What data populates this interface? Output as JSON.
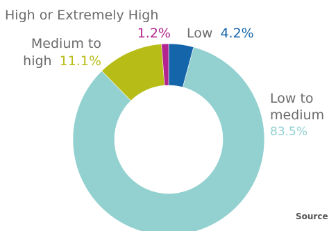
{
  "chart_data": {
    "type": "pie",
    "donut": true,
    "categories": [
      "Low",
      "Low to medium",
      "Medium to high",
      "High or Extremely High"
    ],
    "values": [
      4.2,
      83.5,
      11.1,
      1.2
    ],
    "value_labels": [
      "4.2%",
      "83.5%",
      "11.1%",
      "1.2%"
    ],
    "colors": [
      "#1565ab",
      "#93d0d0",
      "#b7bc16",
      "#b2258f"
    ],
    "label_lines": {
      "low": [
        "Low"
      ],
      "low_to_medium": [
        "Low to",
        "medium"
      ],
      "medium_to_high": [
        "Medium to",
        "high"
      ],
      "high_or_extremely_high": [
        "High or Extremely High"
      ]
    }
  },
  "source_label": "Source"
}
